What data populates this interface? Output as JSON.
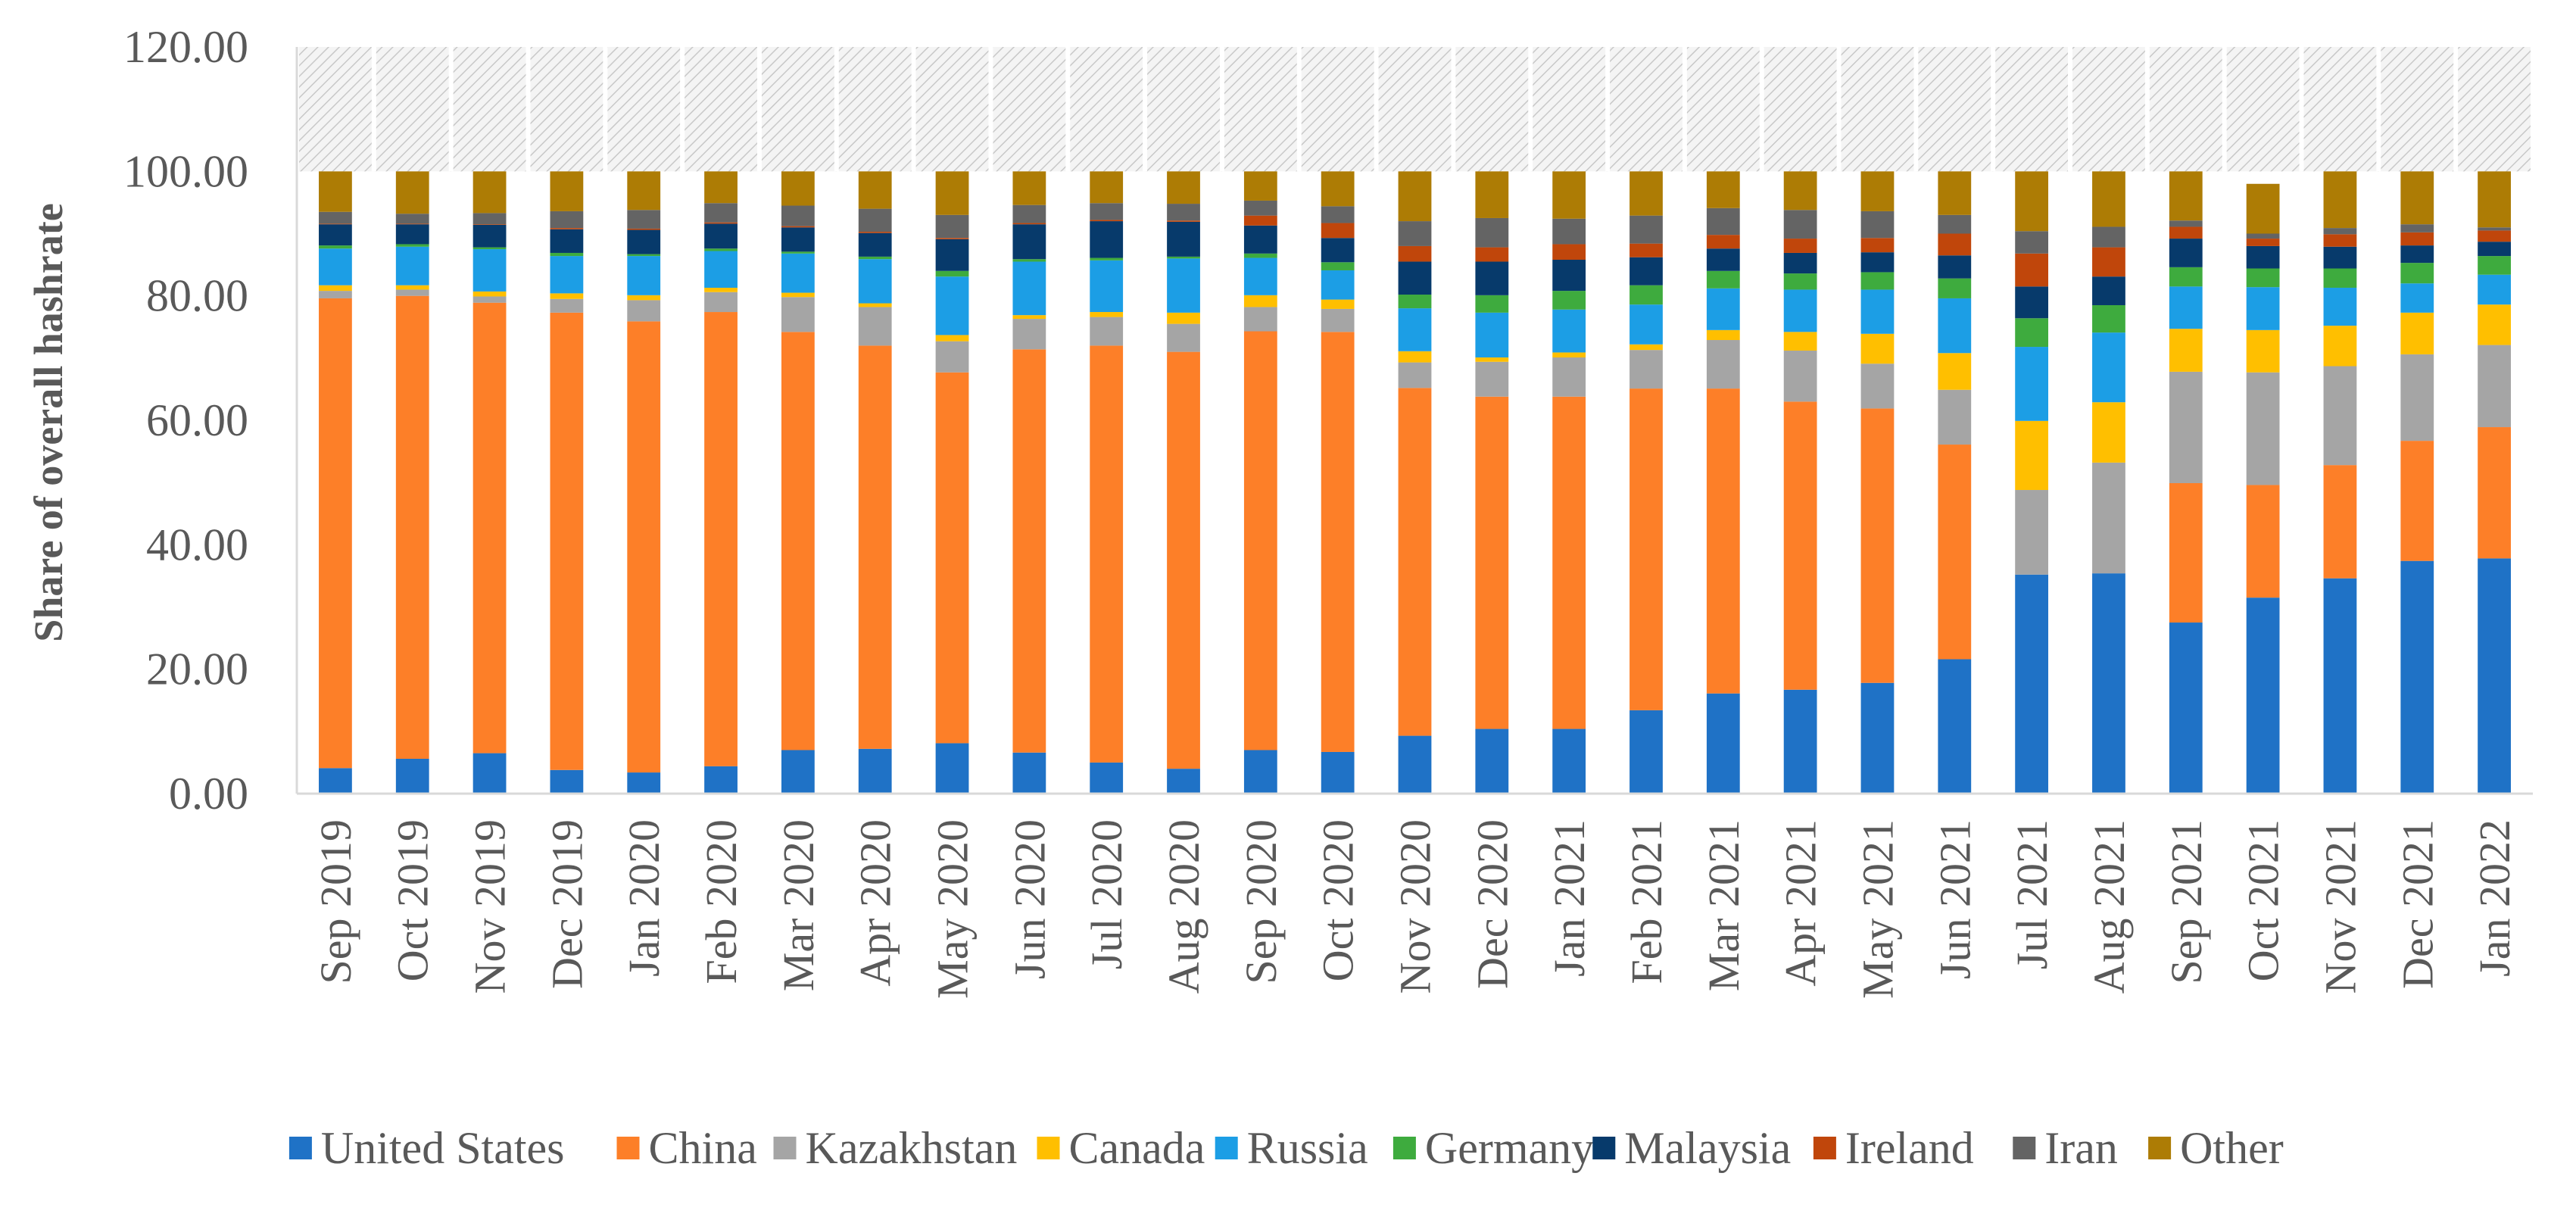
{
  "chart_data": {
    "type": "bar",
    "stacked": true,
    "title": "",
    "xlabel": "",
    "ylabel": "Share of overall hashrate",
    "ylim": [
      0,
      120
    ],
    "y_ticks": [
      "0.00",
      "20.00",
      "40.00",
      "60.00",
      "80.00",
      "100.00",
      "120.00"
    ],
    "y_tick_values": [
      0,
      20,
      40,
      60,
      80,
      100,
      120
    ],
    "grid": false,
    "background_pattern": "diagonal hatch between 100 and 120",
    "legend_position": "bottom",
    "categories": [
      "Sep 2019",
      "Oct 2019",
      "Nov 2019",
      "Dec 2019",
      "Jan 2020",
      "Feb 2020",
      "Mar 2020",
      "Apr 2020",
      "May 2020",
      "Jun 2020",
      "Jul 2020",
      "Aug 2020",
      "Sep 2020",
      "Oct 2020",
      "Nov 2020",
      "Dec 2020",
      "Jan 2021",
      "Feb 2021",
      "Mar 2021",
      "Apr 2021",
      "May 2021",
      "Jun 2021",
      "Jul 2021",
      "Aug 2021",
      "Sep 2021",
      "Oct 2021",
      "Nov 2021",
      "Dec 2021",
      "Jan 2022"
    ],
    "series": [
      {
        "name": "United States",
        "color": "#1f72c6",
        "values": [
          4.1,
          5.6,
          6.5,
          3.8,
          3.4,
          4.4,
          7.0,
          7.2,
          8.1,
          6.6,
          5.0,
          4.0,
          7.0,
          6.7,
          9.3,
          10.4,
          10.4,
          13.4,
          16.1,
          16.7,
          17.8,
          21.6,
          35.2,
          35.4,
          27.5,
          31.5,
          34.6,
          37.4,
          37.8
        ]
      },
      {
        "name": "China",
        "color": "#fd7f28",
        "values": [
          75.5,
          74.4,
          72.4,
          73.5,
          72.5,
          73.0,
          67.2,
          64.8,
          59.6,
          64.8,
          67.0,
          67.0,
          67.3,
          67.5,
          55.9,
          53.4,
          53.4,
          51.7,
          49.0,
          46.3,
          44.1,
          34.5,
          0,
          0,
          22.4,
          18.1,
          18.2,
          19.3,
          21.1
        ]
      },
      {
        "name": "Kazakhstan",
        "color": "#a5a5a5",
        "values": [
          1.2,
          1.0,
          1.0,
          2.2,
          3.4,
          3.2,
          5.6,
          6.2,
          5.0,
          4.9,
          4.6,
          4.5,
          3.9,
          3.7,
          4.1,
          5.6,
          6.3,
          6.2,
          7.8,
          8.2,
          7.2,
          8.8,
          13.6,
          17.8,
          17.9,
          18.1,
          15.9,
          13.9,
          13.2
        ]
      },
      {
        "name": "Canada",
        "color": "#ffbf00",
        "values": [
          0.9,
          0.7,
          0.8,
          0.9,
          0.8,
          0.7,
          0.7,
          0.6,
          1.0,
          0.6,
          0.8,
          1.8,
          1.9,
          1.5,
          1.8,
          0.7,
          0.8,
          0.9,
          1.6,
          3.0,
          4.8,
          5.9,
          11.1,
          9.7,
          6.9,
          6.8,
          6.5,
          6.7,
          6.5
        ]
      },
      {
        "name": "Russia",
        "color": "#1c9ee5",
        "values": [
          5.9,
          6.2,
          6.8,
          6.0,
          6.3,
          5.9,
          6.3,
          7.1,
          9.4,
          8.6,
          8.3,
          8.7,
          6.0,
          4.7,
          6.9,
          7.2,
          6.9,
          6.4,
          6.7,
          6.8,
          7.1,
          8.8,
          11.9,
          11.2,
          6.8,
          6.9,
          6.1,
          4.7,
          4.8
        ]
      },
      {
        "name": "Germany",
        "color": "#3eab3e",
        "values": [
          0.5,
          0.4,
          0.3,
          0.5,
          0.3,
          0.4,
          0.3,
          0.4,
          0.9,
          0.4,
          0.4,
          0.3,
          0.7,
          1.3,
          2.2,
          2.8,
          3.0,
          3.1,
          2.8,
          2.6,
          2.8,
          3.2,
          4.6,
          4.4,
          3.1,
          3.0,
          3.1,
          3.3,
          3.0
        ]
      },
      {
        "name": "Malaysia",
        "color": "#073a6b",
        "values": [
          3.4,
          3.2,
          3.6,
          3.8,
          3.9,
          4.0,
          3.9,
          3.8,
          5.1,
          5.6,
          5.9,
          5.6,
          4.5,
          3.9,
          5.3,
          5.4,
          5.0,
          4.5,
          3.6,
          3.3,
          3.2,
          3.7,
          5.1,
          4.6,
          4.6,
          3.6,
          3.5,
          2.8,
          2.3
        ]
      },
      {
        "name": "Ireland",
        "color": "#c0460b",
        "values": [
          0.1,
          0.1,
          0.1,
          0.2,
          0.2,
          0.2,
          0.2,
          0.2,
          0.2,
          0.2,
          0.2,
          0.2,
          1.6,
          2.4,
          2.5,
          2.3,
          2.5,
          2.2,
          2.2,
          2.3,
          2.3,
          3.5,
          5.3,
          4.7,
          1.9,
          1.2,
          2.0,
          2.1,
          1.8
        ]
      },
      {
        "name": "Iran",
        "color": "#646464",
        "values": [
          1.9,
          1.6,
          1.8,
          2.7,
          3.0,
          3.1,
          3.3,
          3.7,
          3.7,
          2.9,
          2.7,
          2.7,
          2.4,
          2.7,
          4.0,
          4.7,
          4.1,
          4.5,
          4.3,
          4.6,
          4.3,
          3.0,
          3.6,
          3.3,
          1.0,
          0.8,
          1.0,
          1.3,
          0.5
        ]
      },
      {
        "name": "Other",
        "color": "#ad7c05",
        "values": [
          6.5,
          6.8,
          6.7,
          6.4,
          6.2,
          5.1,
          5.5,
          6.0,
          7.0,
          5.4,
          5.1,
          5.2,
          4.7,
          5.6,
          8.0,
          7.5,
          7.6,
          7.1,
          5.9,
          6.2,
          6.4,
          7.0,
          9.6,
          8.9,
          7.9,
          8.0,
          9.1,
          8.5,
          9.0
        ]
      }
    ]
  }
}
